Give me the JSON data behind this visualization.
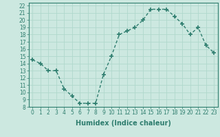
{
  "x": [
    0,
    1,
    2,
    3,
    4,
    5,
    6,
    7,
    8,
    9,
    10,
    11,
    12,
    13,
    14,
    15,
    16,
    17,
    18,
    19,
    20,
    21,
    22,
    23
  ],
  "y": [
    14.5,
    14.0,
    13.0,
    13.0,
    10.5,
    9.5,
    8.5,
    8.5,
    8.5,
    12.5,
    15.0,
    18.0,
    18.5,
    19.0,
    20.0,
    21.5,
    21.5,
    21.5,
    20.5,
    19.5,
    18.0,
    19.0,
    16.5,
    15.5
  ],
  "xlabel": "Humidex (Indice chaleur)",
  "xlim": [
    -0.5,
    23.5
  ],
  "ylim": [
    8,
    22.4
  ],
  "xticks": [
    0,
    1,
    2,
    3,
    4,
    5,
    6,
    7,
    8,
    9,
    10,
    11,
    12,
    13,
    14,
    15,
    16,
    17,
    18,
    19,
    20,
    21,
    22,
    23
  ],
  "yticks": [
    8,
    9,
    10,
    11,
    12,
    13,
    14,
    15,
    16,
    17,
    18,
    19,
    20,
    21,
    22
  ],
  "line_color": "#2e7d6e",
  "marker": "+",
  "marker_size": 4,
  "bg_color": "#cce8e0",
  "grid_color": "#b0d8cc",
  "tick_label_fontsize": 5.5,
  "xlabel_fontsize": 7,
  "line_width": 1.0
}
